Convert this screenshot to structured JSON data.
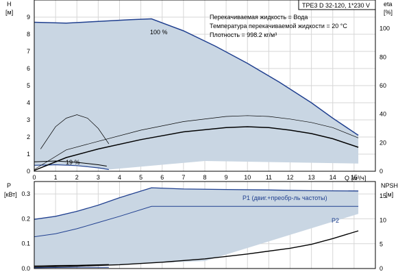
{
  "chart_data": [
    {
      "type": "line",
      "panel": "top",
      "title": "TPE3 D 32-120, 1*230 V",
      "xlabel": "Q [м³/ч]",
      "xlabel_parts": [
        "Q",
        "[м³/ч]"
      ],
      "ylabel": "H [м]",
      "ylabel_parts": [
        "H",
        "[м]"
      ],
      "y2label": "eta [%]",
      "y2label_parts": [
        "eta",
        "[%]"
      ],
      "xlim": [
        0,
        16
      ],
      "ylim": [
        0,
        10
      ],
      "y2lim": [
        0,
        120
      ],
      "x_ticks": [
        "0",
        "1",
        "2",
        "3",
        "4",
        "5",
        "6",
        "7",
        "8",
        "9",
        "10",
        "11",
        "12",
        "13",
        "14",
        "15"
      ],
      "y_ticks": [
        "0",
        "1",
        "2",
        "3",
        "4",
        "5",
        "6",
        "7",
        "8",
        "9"
      ],
      "y2_ticks": [
        "0",
        "20",
        "40",
        "60",
        "80",
        "100"
      ],
      "info_lines": [
        "Перекачиваемая жидкость = Вода",
        "Температура перекачиваемой жидкости = 20 °C",
        "Плотность = 998.2 кг/м³"
      ],
      "annotations": [
        "100 %",
        "19 %"
      ],
      "series": [
        {
          "name": "100 %",
          "x": [
            0,
            1.5,
            3,
            4.5,
            5.5,
            7,
            8.5,
            10,
            11.5,
            13,
            14,
            15.2
          ],
          "y": [
            8.7,
            8.65,
            8.75,
            8.85,
            8.9,
            8.2,
            7.3,
            6.3,
            5.2,
            4.0,
            3.1,
            2.1
          ]
        },
        {
          "name": "19 %",
          "x": [
            0,
            1,
            2,
            3,
            3.5
          ],
          "y": [
            0.35,
            0.38,
            0.33,
            0.2,
            0.1
          ]
        },
        {
          "x": [
            0,
            1,
            2,
            3,
            3.4
          ],
          "y": [
            0.55,
            0.6,
            0.52,
            0.38,
            0.3
          ]
        },
        {
          "x": [
            0,
            1.5,
            3,
            5,
            7,
            9,
            10,
            11,
            12,
            13,
            14,
            15.2
          ],
          "y": [
            0.1,
            1.25,
            1.75,
            2.4,
            2.9,
            3.2,
            3.25,
            3.2,
            3.05,
            2.85,
            2.55,
            1.95
          ]
        },
        {
          "x": [
            0,
            1.5,
            3,
            5,
            7,
            9,
            10,
            11,
            12,
            13,
            14,
            15.2
          ],
          "y": [
            0.05,
            0.8,
            1.3,
            1.85,
            2.3,
            2.55,
            2.6,
            2.55,
            2.4,
            2.2,
            1.9,
            1.4
          ]
        },
        {
          "x": [
            0.3,
            1,
            1.5,
            2,
            2.5,
            3,
            3.5
          ],
          "y": [
            1.3,
            2.6,
            3.1,
            3.3,
            3.1,
            2.5,
            1.6
          ]
        }
      ]
    },
    {
      "type": "line",
      "panel": "bottom",
      "xlim": [
        0,
        16
      ],
      "ylabel": "P [кВт]",
      "ylabel_parts": [
        "P",
        "[кВт]"
      ],
      "ylim": [
        0,
        0.35
      ],
      "y2label": "NPSH [м]",
      "y2label_parts": [
        "NPSH",
        "[м]"
      ],
      "y2lim": [
        0,
        18
      ],
      "y_ticks": [
        "0.0",
        "0.1",
        "0.2",
        "0.3"
      ],
      "y2_ticks": [
        "0",
        "5",
        "10",
        "15"
      ],
      "series": [
        {
          "name": "P1 (двиг.+преобр-ль частоты)",
          "x": [
            0,
            1,
            2,
            3,
            4,
            5.5,
            7,
            9,
            11,
            13,
            15.2
          ],
          "y": [
            0.198,
            0.21,
            0.23,
            0.255,
            0.285,
            0.325,
            0.32,
            0.318,
            0.316,
            0.313,
            0.312
          ]
        },
        {
          "name": "P2",
          "x": [
            0,
            1,
            2,
            3,
            4,
            5.5,
            7,
            9,
            11,
            13,
            15.2
          ],
          "y": [
            0.128,
            0.14,
            0.16,
            0.185,
            0.21,
            0.25,
            0.25,
            0.25,
            0.25,
            0.25,
            0.25
          ]
        },
        {
          "name": "NPSH",
          "x": [
            0,
            2,
            4,
            6,
            8,
            10,
            12,
            13,
            14,
            15.2
          ],
          "y2": [
            0.3,
            0.5,
            0.8,
            1.3,
            2.0,
            3.0,
            4.2,
            5.0,
            6.2,
            7.8
          ]
        },
        {
          "x": [
            0,
            1,
            2,
            3,
            3.5
          ],
          "y": [
            0.01,
            0.012,
            0.013,
            0.015,
            0.016
          ]
        },
        {
          "x": [
            0,
            1,
            2,
            3,
            3.5
          ],
          "y": [
            0.003,
            0.004,
            0.005,
            0.005,
            0.005
          ]
        }
      ]
    }
  ],
  "colors": {
    "region_fill": "#c9d6e3",
    "light_fill": "#e8f0f8",
    "curve_blue": "#1f3f8f",
    "curve_black": "#000000",
    "grid": "#d6d6d6"
  }
}
